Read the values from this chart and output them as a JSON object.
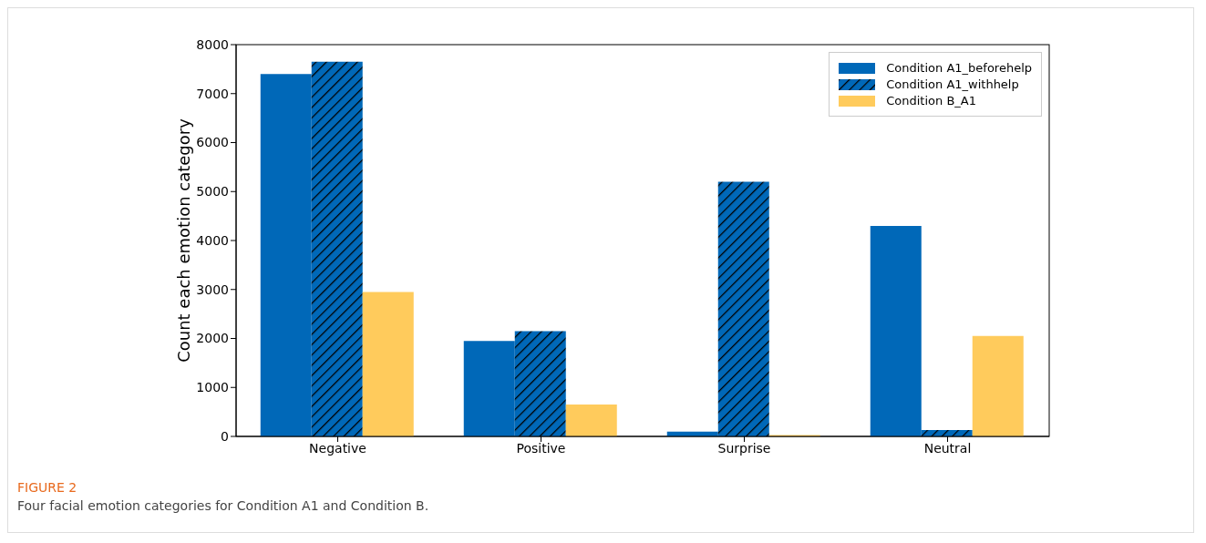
{
  "chart_data": {
    "type": "bar",
    "ylabel": "Count each emotion category",
    "categories": [
      "Negative",
      "Positive",
      "Surprise",
      "Neutral"
    ],
    "series": [
      {
        "name": "Condition A1_beforehelp",
        "color": "#0068b8",
        "values": [
          7400,
          1950,
          100,
          4300
        ]
      },
      {
        "name": "Condition A1_withhelp",
        "color": "#0068b8",
        "values": [
          7650,
          2150,
          5200,
          130
        ]
      },
      {
        "name": "Condition B_A1",
        "color": "#ffcb5c",
        "values": [
          2950,
          650,
          30,
          2050
        ]
      }
    ],
    "ylim": [
      0,
      8000
    ],
    "yticks": [
      0,
      1000,
      2000,
      3000,
      4000,
      5000,
      6000,
      7000,
      8000
    ],
    "legend": "top right",
    "annotations": [
      "FIGURE 2",
      "Four facial emotion categories for Condition A1 and Condition B."
    ]
  }
}
